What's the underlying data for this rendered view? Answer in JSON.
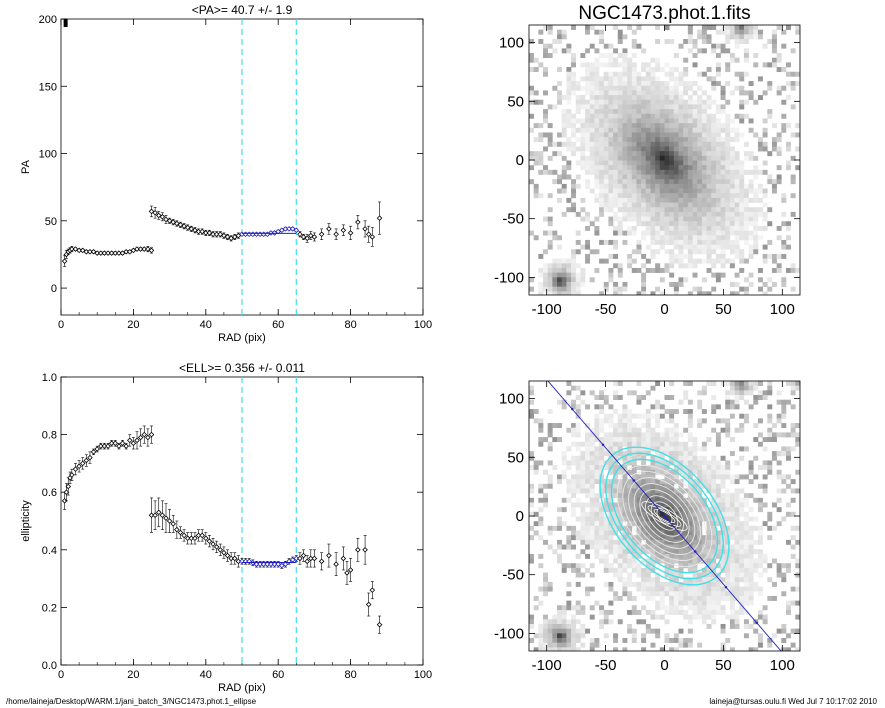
{
  "chart_data": [
    {
      "id": "pa",
      "type": "scatter",
      "title": "<PA>=  40.7 +/-   1.9",
      "xlabel": "RAD (pix)",
      "ylabel": "PA",
      "xlim": [
        0,
        100
      ],
      "ylim": [
        -20,
        200
      ],
      "xticks": [
        "0",
        "20",
        "40",
        "60",
        "80",
        "100"
      ],
      "yticks": [
        "0",
        "50",
        "100",
        "150",
        "200"
      ],
      "vlines": [
        50,
        65
      ],
      "fit_range": [
        50,
        65
      ],
      "fit_value": 40.7,
      "series": [
        {
          "x": [
            1.0,
            1.5,
            2.0,
            2.5,
            3,
            4,
            5,
            6,
            7,
            8,
            9,
            10,
            11,
            12,
            13,
            14,
            15,
            16,
            17,
            18,
            19,
            20,
            21,
            22,
            23,
            24,
            25
          ],
          "y": [
            20,
            25,
            27,
            28,
            29,
            29,
            28,
            28,
            27,
            27,
            27,
            26,
            26,
            26,
            26,
            26,
            26,
            26,
            26,
            27,
            27,
            28,
            29,
            29,
            29,
            29,
            28
          ],
          "err": [
            4,
            3,
            2,
            2,
            2,
            1,
            1,
            1,
            1,
            1,
            1,
            1,
            1,
            1,
            1,
            1,
            1,
            1,
            1,
            1,
            1,
            1,
            1,
            1,
            1,
            2,
            2
          ]
        },
        {
          "x": [
            25,
            26,
            27,
            28,
            29,
            30,
            31,
            32,
            33,
            34,
            35,
            36,
            37,
            38,
            39,
            40,
            41,
            42,
            43,
            44,
            45,
            46,
            47,
            48,
            49
          ],
          "y": [
            57,
            56,
            54,
            53,
            51,
            50,
            49,
            48,
            47,
            46,
            45,
            44,
            43,
            42,
            42,
            41,
            41,
            40,
            40,
            40,
            39,
            38,
            37,
            38,
            39
          ],
          "err": [
            4,
            4,
            3,
            3,
            3,
            2,
            2,
            2,
            2,
            2,
            2,
            2,
            2,
            2,
            2,
            2,
            2,
            2,
            2,
            2,
            2,
            2,
            2,
            2,
            2
          ]
        },
        {
          "x": [
            50,
            51,
            52,
            53,
            54,
            55,
            56,
            57,
            58,
            59,
            60,
            61,
            62,
            63,
            64,
            65
          ],
          "y": [
            40,
            40,
            40,
            40,
            40,
            40,
            40,
            40,
            41,
            41,
            42,
            43,
            44,
            44,
            44,
            43
          ],
          "err": [
            1,
            1,
            1,
            1,
            1,
            1,
            1,
            1,
            1,
            1,
            1,
            1,
            1,
            1,
            1,
            1
          ]
        },
        {
          "x": [
            66,
            67,
            68,
            69,
            70,
            72,
            74,
            76,
            78,
            80,
            82,
            84,
            85,
            86,
            88
          ],
          "y": [
            40,
            38,
            37,
            39,
            38,
            40,
            44,
            40,
            43,
            41,
            49,
            44,
            40,
            38,
            52
          ],
          "err": [
            2,
            2,
            3,
            3,
            3,
            4,
            4,
            4,
            4,
            5,
            5,
            6,
            6,
            7,
            12
          ]
        }
      ],
      "outlier": {
        "x": 1,
        "y": 198
      }
    },
    {
      "id": "ell",
      "type": "scatter",
      "title": "<ELL>= 0.356 +/-  0.011",
      "xlabel": "RAD (pix)",
      "ylabel": "ellipticity",
      "xlim": [
        0,
        100
      ],
      "ylim": [
        0.0,
        1.0
      ],
      "xticks": [
        "0",
        "20",
        "40",
        "60",
        "80",
        "100"
      ],
      "yticks": [
        "0.0",
        "0.2",
        "0.4",
        "0.6",
        "0.8",
        "1.0"
      ],
      "vlines": [
        50,
        65
      ],
      "fit_range": [
        50,
        65
      ],
      "fit_value": 0.356,
      "series": [
        {
          "x": [
            1.0,
            1.5,
            2.0,
            2.5,
            3,
            4,
            5,
            6,
            7,
            8,
            9,
            10,
            11,
            12,
            13,
            14,
            15,
            16,
            17,
            18,
            19,
            20,
            21,
            22,
            23,
            24,
            25
          ],
          "y": [
            0.57,
            0.6,
            0.62,
            0.65,
            0.66,
            0.68,
            0.69,
            0.7,
            0.71,
            0.72,
            0.74,
            0.75,
            0.76,
            0.76,
            0.76,
            0.77,
            0.77,
            0.76,
            0.77,
            0.76,
            0.78,
            0.77,
            0.78,
            0.79,
            0.8,
            0.79,
            0.8
          ],
          "err": [
            0.03,
            0.03,
            0.03,
            0.02,
            0.02,
            0.02,
            0.02,
            0.02,
            0.02,
            0.02,
            0.01,
            0.01,
            0.01,
            0.01,
            0.01,
            0.01,
            0.01,
            0.01,
            0.01,
            0.01,
            0.02,
            0.02,
            0.03,
            0.03,
            0.03,
            0.03,
            0.03
          ]
        },
        {
          "x": [
            25,
            26,
            27,
            28,
            29,
            30,
            31,
            32,
            33,
            34,
            35,
            36,
            37,
            38,
            39,
            40,
            41,
            42,
            43,
            44,
            45,
            46,
            47,
            48,
            49
          ],
          "y": [
            0.52,
            0.52,
            0.53,
            0.52,
            0.51,
            0.5,
            0.49,
            0.47,
            0.46,
            0.45,
            0.44,
            0.44,
            0.44,
            0.45,
            0.45,
            0.44,
            0.43,
            0.42,
            0.41,
            0.4,
            0.39,
            0.38,
            0.37,
            0.37,
            0.36
          ],
          "err": [
            0.06,
            0.05,
            0.05,
            0.05,
            0.05,
            0.04,
            0.03,
            0.03,
            0.02,
            0.02,
            0.02,
            0.02,
            0.02,
            0.02,
            0.02,
            0.02,
            0.02,
            0.02,
            0.02,
            0.02,
            0.02,
            0.02,
            0.02,
            0.02,
            0.02
          ]
        },
        {
          "x": [
            50,
            51,
            52,
            53,
            54,
            55,
            56,
            57,
            58,
            59,
            60,
            61,
            62,
            63,
            64,
            65
          ],
          "y": [
            0.36,
            0.36,
            0.36,
            0.355,
            0.35,
            0.35,
            0.35,
            0.35,
            0.35,
            0.35,
            0.35,
            0.345,
            0.35,
            0.36,
            0.365,
            0.37
          ],
          "err": [
            0.01,
            0.01,
            0.01,
            0.01,
            0.01,
            0.01,
            0.01,
            0.01,
            0.01,
            0.01,
            0.01,
            0.01,
            0.01,
            0.01,
            0.01,
            0.01
          ]
        },
        {
          "x": [
            66,
            67,
            68,
            69,
            70,
            72,
            74,
            76,
            78,
            79,
            80,
            82,
            84,
            85,
            86,
            88
          ],
          "y": [
            0.37,
            0.38,
            0.36,
            0.37,
            0.37,
            0.36,
            0.38,
            0.35,
            0.37,
            0.32,
            0.33,
            0.4,
            0.4,
            0.21,
            0.26,
            0.14
          ],
          "err": [
            0.02,
            0.02,
            0.02,
            0.03,
            0.03,
            0.03,
            0.04,
            0.04,
            0.04,
            0.04,
            0.04,
            0.04,
            0.05,
            0.04,
            0.03,
            0.03
          ]
        }
      ]
    },
    {
      "id": "image",
      "type": "heatmap",
      "title": "NGC1473.phot.1.fits",
      "xlim": [
        -115,
        115
      ],
      "ylim": [
        -115,
        115
      ],
      "xticks": [
        "-100",
        "-50",
        "0",
        "50",
        "100"
      ],
      "yticks": [
        "-100",
        "-50",
        "0",
        "50",
        "100"
      ],
      "galaxy_pa_deg": 40.7,
      "galaxy_ellipticity": 0.356
    },
    {
      "id": "overlay",
      "type": "heatmap",
      "title": "",
      "xlim": [
        -115,
        115
      ],
      "ylim": [
        -115,
        115
      ],
      "xticks": [
        "-100",
        "-50",
        "0",
        "50",
        "100"
      ],
      "yticks": [
        "-100",
        "-50",
        "0",
        "50",
        "100"
      ],
      "line_pa_deg": 40.7,
      "contour_radii": [
        8,
        14,
        20,
        26,
        32,
        38,
        44,
        50,
        56,
        62,
        68
      ]
    }
  ],
  "footer": {
    "path": "/home/laineja/Desktop/WARM.1/jani_batch_3/NGC1473.phot.1_ellipse",
    "stamp": "laineja@tursas.oulu.fi  Wed Jul  7 10:17:02 2010"
  },
  "colors": {
    "vline": "#40e0e8",
    "fit": "#2020c0",
    "points": "#000000"
  }
}
